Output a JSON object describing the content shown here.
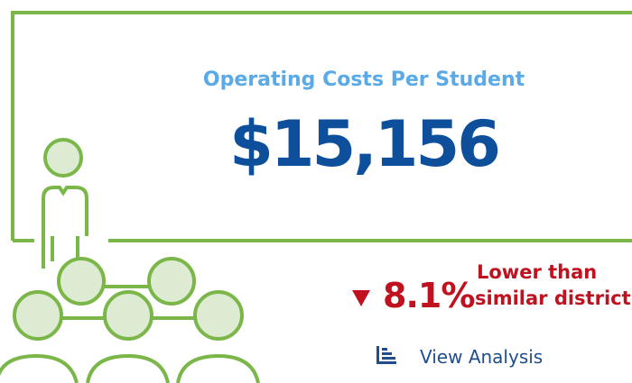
{
  "card": {
    "title": "Operating Costs Per Student",
    "value": "$15,156",
    "change": "8.1%",
    "comparison_line1": "Lower than",
    "comparison_line2": "similar district",
    "link": "View Analysis"
  }
}
